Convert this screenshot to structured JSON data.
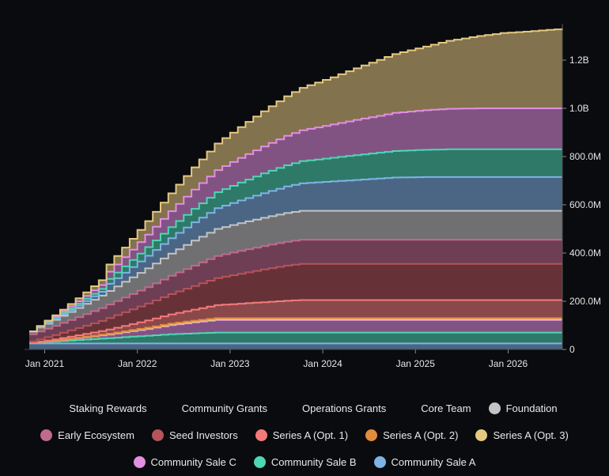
{
  "chart_data": {
    "type": "area",
    "stacked": true,
    "step": true,
    "title": "",
    "xlabel": "",
    "ylabel": "",
    "unit": "tokens (millions)",
    "ylim": [
      0,
      1330
    ],
    "y_ticks": [
      {
        "value": 0,
        "label": "0"
      },
      {
        "value": 200,
        "label": "200.0M"
      },
      {
        "value": 400,
        "label": "400.0M"
      },
      {
        "value": 600,
        "label": "600.0M"
      },
      {
        "value": 800,
        "label": "800.0M"
      },
      {
        "value": 1000,
        "label": "1.0B"
      },
      {
        "value": 1200,
        "label": "1.2B"
      }
    ],
    "x_ticks": [
      {
        "date": "2021-01",
        "label": "Jan 2021"
      },
      {
        "date": "2022-01",
        "label": "Jan 2022"
      },
      {
        "date": "2023-01",
        "label": "Jan 2023"
      },
      {
        "date": "2024-01",
        "label": "Jan 2024"
      },
      {
        "date": "2025-01",
        "label": "Jan 2025"
      },
      {
        "date": "2026-01",
        "label": "Jan 2026"
      }
    ],
    "x_range": [
      "2020-11",
      "2026-08"
    ],
    "y_axis_position": "right",
    "grid": false,
    "legend_position": "bottom",
    "sample_dates": [
      "2020-11",
      "2021-02",
      "2021-05",
      "2021-08",
      "2021-09",
      "2021-11",
      "2022-02",
      "2022-05",
      "2022-08",
      "2022-11",
      "2023-02",
      "2023-05",
      "2023-08",
      "2023-10",
      "2024-02",
      "2024-05",
      "2024-08",
      "2024-10",
      "2025-02",
      "2025-05",
      "2025-09",
      "2025-12",
      "2026-03",
      "2026-08"
    ],
    "series": [
      {
        "name": "Community Sale A",
        "color": "#7fb3e6",
        "values": [
          25,
          25,
          25,
          25,
          25,
          25,
          25,
          25,
          25,
          25,
          25,
          25,
          25,
          25,
          25,
          25,
          25,
          25,
          25,
          25,
          25,
          25,
          25,
          25
        ]
      },
      {
        "name": "Community Sale B",
        "color": "#4fd6b4",
        "values": [
          3,
          8,
          14,
          20,
          22,
          26,
          32,
          38,
          42,
          45,
          45,
          45,
          45,
          45,
          45,
          45,
          45,
          45,
          45,
          45,
          45,
          45,
          45,
          45
        ]
      },
      {
        "name": "Community Sale C",
        "color": "#e38fe3",
        "values": [
          0,
          3,
          8,
          13,
          15,
          20,
          28,
          38,
          45,
          52,
          52,
          52,
          52,
          52,
          52,
          52,
          52,
          52,
          52,
          52,
          52,
          52,
          52,
          52
        ]
      },
      {
        "name": "Series A (Opt. 3)",
        "color": "#e5c981",
        "values": [
          0,
          0.5,
          1,
          1.5,
          1.6,
          2,
          2.3,
          2.6,
          2.8,
          3,
          3,
          3,
          3,
          3,
          3,
          3,
          3,
          3,
          3,
          3,
          3,
          3,
          3,
          3
        ]
      },
      {
        "name": "Series A (Opt. 2)",
        "color": "#e08c3e",
        "values": [
          0,
          0.5,
          1,
          1.8,
          2,
          2.5,
          3.2,
          4,
          4.6,
          5,
          5,
          5,
          5,
          5,
          5,
          5,
          5,
          5,
          5,
          5,
          5,
          5,
          5,
          5
        ]
      },
      {
        "name": "Series A (Opt. 1)",
        "color": "#f47b7b",
        "values": [
          0,
          5,
          10,
          15,
          17,
          22,
          30,
          38,
          46,
          54,
          60,
          66,
          72,
          75,
          75,
          75,
          75,
          75,
          75,
          75,
          75,
          75,
          75,
          75
        ]
      },
      {
        "name": "Seed Investors",
        "color": "#b5545a",
        "values": [
          5,
          18,
          30,
          42,
          48,
          57,
          70,
          84,
          98,
          112,
          124,
          136,
          146,
          150,
          150,
          150,
          150,
          150,
          150,
          150,
          150,
          150,
          150,
          150
        ]
      },
      {
        "name": "Early Ecosystem",
        "color": "#c06a8e",
        "values": [
          30,
          38,
          45,
          53,
          56,
          61,
          68,
          76,
          84,
          92,
          95,
          97,
          99,
          100,
          100,
          100,
          100,
          100,
          100,
          100,
          100,
          100,
          100,
          100
        ]
      },
      {
        "name": "Foundation",
        "color": "#c4c4c4",
        "values": [
          12,
          25,
          38,
          52,
          56,
          65,
          78,
          92,
          104,
          112,
          115,
          117,
          119,
          120,
          120,
          120,
          120,
          120,
          120,
          120,
          120,
          120,
          120,
          120
        ]
      },
      {
        "name": "Core Team",
        "color": "#7fb3e6",
        "values": [
          0,
          5,
          10,
          16,
          30,
          38,
          52,
          64,
          76,
          86,
          94,
          102,
          110,
          114,
          122,
          128,
          134,
          138,
          140,
          140,
          140,
          140,
          140,
          140
        ]
      },
      {
        "name": "Operations Grants",
        "color": "#4fd6b4",
        "values": [
          0,
          4,
          8,
          12,
          20,
          26,
          36,
          46,
          56,
          66,
          74,
          82,
          88,
          92,
          98,
          103,
          107,
          110,
          113,
          115,
          115,
          115,
          115,
          115
        ]
      },
      {
        "name": "Community Grants",
        "color": "#e38fe3",
        "values": [
          0,
          5,
          10,
          16,
          30,
          38,
          52,
          66,
          80,
          92,
          102,
          112,
          122,
          128,
          138,
          146,
          153,
          158,
          164,
          168,
          170,
          170,
          170,
          170
        ]
      },
      {
        "name": "Staking Rewards",
        "color": "#e5c981",
        "values": [
          0,
          5,
          12,
          20,
          30,
          40,
          56,
          74,
          92,
          110,
          128,
          146,
          164,
          176,
          196,
          214,
          232,
          244,
          264,
          282,
          300,
          312,
          318,
          330
        ]
      }
    ]
  },
  "legend": {
    "row1": [
      {
        "label": "Staking Rewards",
        "color": "#0a0b0e"
      },
      {
        "label": "Community Grants",
        "color": "#0a0b0e"
      },
      {
        "label": "Operations Grants",
        "color": "#0a0b0e"
      },
      {
        "label": "Core Team",
        "color": "#0a0b0e"
      },
      {
        "label": "Foundation",
        "color": "#c4c4c4"
      }
    ],
    "row2": [
      {
        "label": "Early Ecosystem",
        "color": "#c06a8e"
      },
      {
        "label": "Seed Investors",
        "color": "#b5545a"
      },
      {
        "label": "Series A (Opt. 1)",
        "color": "#f47b7b"
      },
      {
        "label": "Series A (Opt. 2)",
        "color": "#e08c3e"
      },
      {
        "label": "Series A (Opt. 3)",
        "color": "#e5c981"
      }
    ],
    "row3": [
      {
        "label": "Community Sale C",
        "color": "#e38fe3"
      },
      {
        "label": "Community Sale B",
        "color": "#4fd6b4"
      },
      {
        "label": "Community Sale A",
        "color": "#7fb3e6"
      }
    ]
  }
}
